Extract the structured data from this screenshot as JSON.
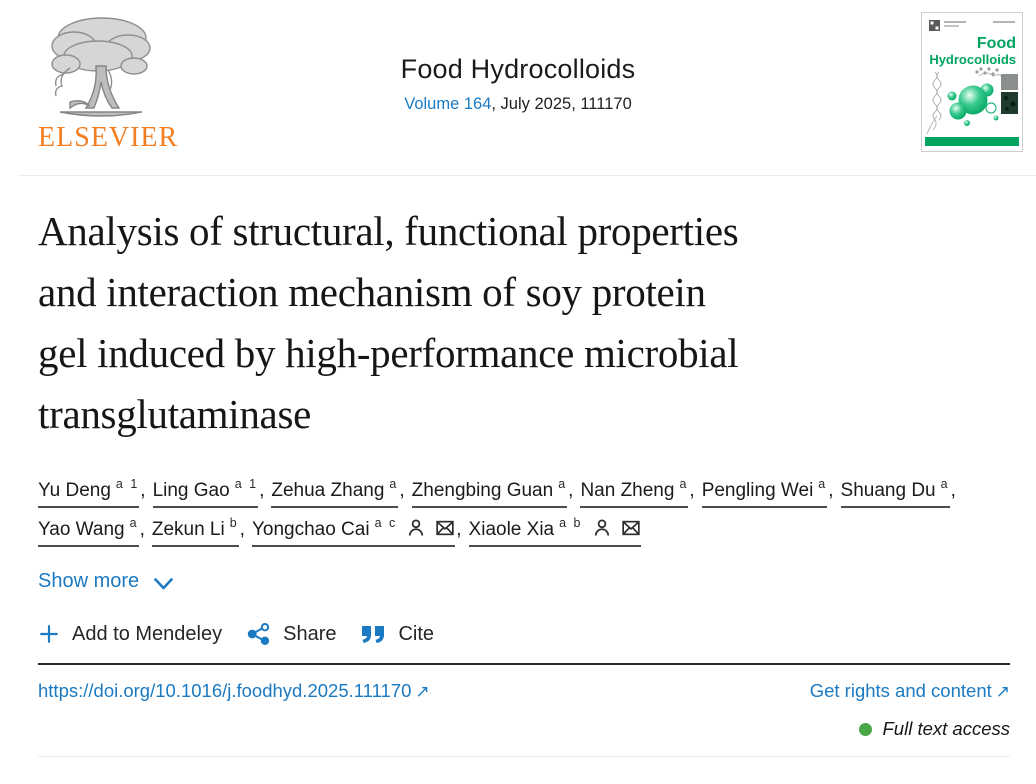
{
  "colors": {
    "link_blue": "#1b7ac2",
    "elsevier_orange": "#f47e20",
    "access_green": "#4aa546",
    "cover_green": "#00a45f",
    "text_dark": "#1d1d1d"
  },
  "header": {
    "publisher_wordmark": "ELSEVIER",
    "journal_title": "Food Hydrocolloids",
    "volume_link": "Volume 164",
    "issue_rest": ", July 2025, 111170",
    "cover": {
      "title_line1": "Food",
      "title_line2": "Hydrocolloids"
    }
  },
  "article": {
    "title": "Analysis of structural, functional properties and interaction mechanism of soy protein gel induced by high-performance microbial transglutaminase",
    "title_lines": [
      "Analysis of structural, functional properties",
      "and interaction mechanism of soy protein",
      "gel induced by high-performance microbial",
      "transglutaminase"
    ],
    "authors": [
      {
        "name": "Yu Deng",
        "sup": "a 1",
        "icons": []
      },
      {
        "name": "Ling Gao",
        "sup": "a 1",
        "icons": []
      },
      {
        "name": "Zehua Zhang",
        "sup": "a",
        "icons": []
      },
      {
        "name": "Zhengbing Guan",
        "sup": "a",
        "icons": []
      },
      {
        "name": "Nan Zheng",
        "sup": "a",
        "icons": []
      },
      {
        "name": "Pengling Wei",
        "sup": "a",
        "icons": []
      },
      {
        "name": "Shuang Du",
        "sup": "a",
        "icons": []
      },
      {
        "name": "Yao Wang",
        "sup": "a",
        "icons": []
      },
      {
        "name": "Zekun Li",
        "sup": "b",
        "icons": []
      },
      {
        "name": "Yongchao Cai",
        "sup": "a c",
        "icons": [
          "person-icon",
          "envelope-icon"
        ]
      },
      {
        "name": "Xiaole Xia",
        "sup": "a b",
        "icons": [
          "person-icon",
          "envelope-icon"
        ]
      }
    ],
    "show_more_label": "Show more"
  },
  "actions": {
    "mendeley_label": "Add to Mendeley",
    "share_label": "Share",
    "cite_label": "Cite"
  },
  "links": {
    "doi": "https://doi.org/10.1016/j.foodhyd.2025.111170",
    "rights_label": "Get rights and content",
    "external_arrow": "↗"
  },
  "access": {
    "label": "Full text access"
  }
}
